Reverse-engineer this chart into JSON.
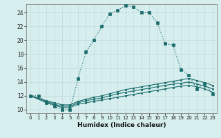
{
  "xlabel": "Humidex (Indice chaleur)",
  "background_color": "#d6eeee",
  "grid_color": "#b8d8d8",
  "line_color": "#1a6b6b",
  "xlim": [
    -0.5,
    23.5
  ],
  "ylim": [
    9.5,
    25.2
  ],
  "xticks": [
    0,
    1,
    2,
    3,
    4,
    5,
    6,
    7,
    8,
    9,
    10,
    11,
    12,
    13,
    14,
    15,
    16,
    17,
    18,
    19,
    20,
    21,
    22,
    23
  ],
  "yticks": [
    10,
    12,
    14,
    16,
    18,
    20,
    22,
    24
  ],
  "series": {
    "curve1": {
      "x": [
        0,
        1,
        2,
        3,
        4,
        5,
        6,
        7,
        8,
        9,
        10,
        11,
        12,
        13,
        14,
        15,
        16,
        17,
        18,
        19,
        20,
        21,
        22,
        23
      ],
      "y": [
        12,
        12,
        11,
        10.5,
        10,
        10,
        14.5,
        18.3,
        20,
        22,
        23.8,
        24.3,
        25.0,
        24.8,
        24.0,
        24.0,
        22.5,
        19.5,
        19.3,
        15.8,
        15.0,
        13.0,
        13.8,
        12.3
      ]
    },
    "curve2": {
      "x": [
        0,
        2,
        3,
        4,
        5,
        6,
        7,
        8,
        9,
        10,
        11,
        12,
        13,
        14,
        15,
        16,
        17,
        18,
        19,
        20,
        21,
        22,
        23
      ],
      "y": [
        12,
        11,
        10.7,
        10.3,
        10.3,
        10.8,
        11.0,
        11.2,
        11.4,
        11.6,
        11.8,
        12.0,
        12.2,
        12.4,
        12.6,
        12.8,
        13.0,
        13.2,
        13.4,
        13.5,
        13.3,
        13.0,
        12.5
      ]
    },
    "curve3": {
      "x": [
        0,
        2,
        3,
        4,
        5,
        6,
        7,
        8,
        9,
        10,
        11,
        12,
        13,
        14,
        15,
        16,
        17,
        18,
        19,
        20,
        21,
        22,
        23
      ],
      "y": [
        12,
        11.2,
        10.8,
        10.5,
        10.5,
        11.0,
        11.3,
        11.5,
        11.7,
        12.0,
        12.3,
        12.5,
        12.7,
        12.9,
        13.1,
        13.3,
        13.5,
        13.7,
        13.8,
        14.0,
        13.7,
        13.4,
        13.0
      ]
    },
    "curve4": {
      "x": [
        0,
        2,
        3,
        4,
        5,
        6,
        7,
        8,
        9,
        10,
        11,
        12,
        13,
        14,
        15,
        16,
        17,
        18,
        19,
        20,
        21,
        22,
        23
      ],
      "y": [
        12,
        11.3,
        11.0,
        10.7,
        10.7,
        11.2,
        11.5,
        11.8,
        12.0,
        12.3,
        12.6,
        12.9,
        13.1,
        13.3,
        13.5,
        13.7,
        13.9,
        14.1,
        14.3,
        14.5,
        14.2,
        13.9,
        13.5
      ]
    }
  }
}
